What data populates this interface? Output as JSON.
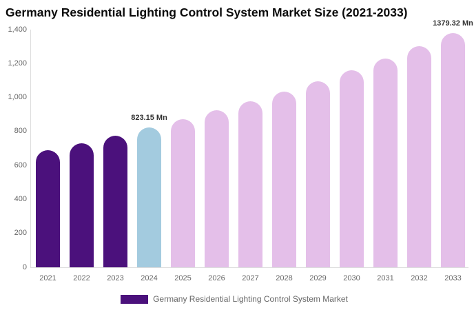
{
  "chart_data": {
    "type": "bar",
    "title": "Germany Residential Lighting Control System Market Size (2021-2033)",
    "unit": "Mn",
    "categories": [
      "2021",
      "2022",
      "2023",
      "2024",
      "2025",
      "2026",
      "2027",
      "2028",
      "2029",
      "2030",
      "2031",
      "2032",
      "2033"
    ],
    "values": [
      690,
      730,
      775,
      823.15,
      871.8,
      923.3,
      977.9,
      1035.7,
      1096.9,
      1161.7,
      1230.4,
      1303.2,
      1379.32
    ],
    "bar_roles": [
      "historical",
      "historical",
      "historical",
      "current",
      "forecast",
      "forecast",
      "forecast",
      "forecast",
      "forecast",
      "forecast",
      "forecast",
      "forecast",
      "forecast"
    ],
    "xlabel": "",
    "ylabel": "",
    "ylim": [
      0,
      1400
    ],
    "grid": false,
    "yticks": [
      {
        "v": 0,
        "label": "0"
      },
      {
        "v": 200,
        "label": "200"
      },
      {
        "v": 400,
        "label": "400"
      },
      {
        "v": 600,
        "label": "600"
      },
      {
        "v": 800,
        "label": "800"
      },
      {
        "v": 1000,
        "label": "1,000"
      },
      {
        "v": 1200,
        "label": "1,200"
      },
      {
        "v": 1400,
        "label": "1,400"
      }
    ],
    "annotations": [
      {
        "index": 3,
        "text": "823.15 Mn"
      },
      {
        "index": 12,
        "text": "1379.32 Mn"
      }
    ],
    "legend": [
      {
        "label": "Germany Residential Lighting Control System Market",
        "color": "#4B117C"
      }
    ],
    "legend_position": "bottom-center"
  },
  "colors": {
    "historical": "#4B117C",
    "current": "#A3CBDF",
    "forecast": "#E4BFE9",
    "axis_line": "#DDDDDD",
    "axis_text": "#666666",
    "data_label_text": "#333333",
    "title_text": "#0B0B0B",
    "background": "#FFFFFF"
  }
}
